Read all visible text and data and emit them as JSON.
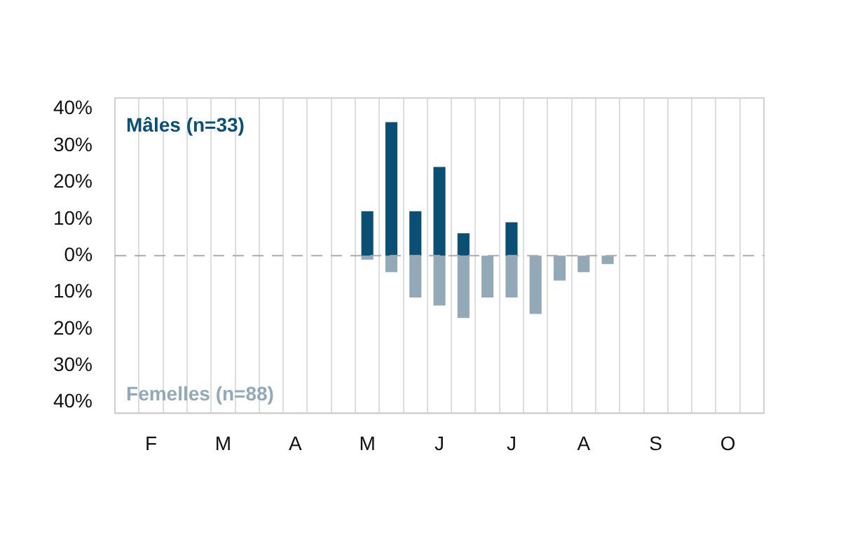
{
  "chart_data": {
    "type": "bar",
    "stacked": true,
    "grid": "x",
    "categories": [
      null,
      "F",
      null,
      null,
      "M",
      null,
      null,
      "A",
      null,
      null,
      "M",
      null,
      null,
      "J",
      null,
      null,
      "J",
      null,
      null,
      "A",
      null,
      null,
      "S",
      null,
      null,
      "O",
      null
    ],
    "series": [
      {
        "name": "Mâles (n=33)",
        "color": "#0b4f74",
        "values": [
          null,
          null,
          null,
          null,
          null,
          null,
          null,
          null,
          null,
          null,
          12.1,
          36.4,
          12.1,
          24.2,
          6.1,
          0,
          9.1,
          0,
          0,
          0,
          0,
          null,
          null,
          null,
          null,
          null,
          null
        ]
      },
      {
        "name": "Femelles (n=88)",
        "color": "#94a9b8",
        "values": [
          null,
          null,
          null,
          null,
          null,
          null,
          null,
          null,
          null,
          null,
          -1.1,
          -4.5,
          -11.4,
          -13.6,
          -17,
          -11.4,
          -11.4,
          -15.9,
          -6.8,
          -4.5,
          -2.3,
          null,
          null,
          null,
          null,
          null,
          null
        ]
      }
    ],
    "ylim": [
      -43,
      43
    ],
    "yticks": [
      {
        "value": -40,
        "label": "40%"
      },
      {
        "value": -30,
        "label": "30%"
      },
      {
        "value": -20,
        "label": "20%"
      },
      {
        "value": -10,
        "label": "10%"
      },
      {
        "value": 0,
        "label": "0%"
      },
      {
        "value": 10,
        "label": "10%"
      },
      {
        "value": 20,
        "label": "20%"
      },
      {
        "value": 30,
        "label": "30%"
      },
      {
        "value": 40,
        "label": "40%"
      }
    ],
    "ref_lines": [
      {
        "axis": "y",
        "value": 0,
        "color": "#aaaaaa",
        "line_style": "dashed"
      }
    ]
  }
}
